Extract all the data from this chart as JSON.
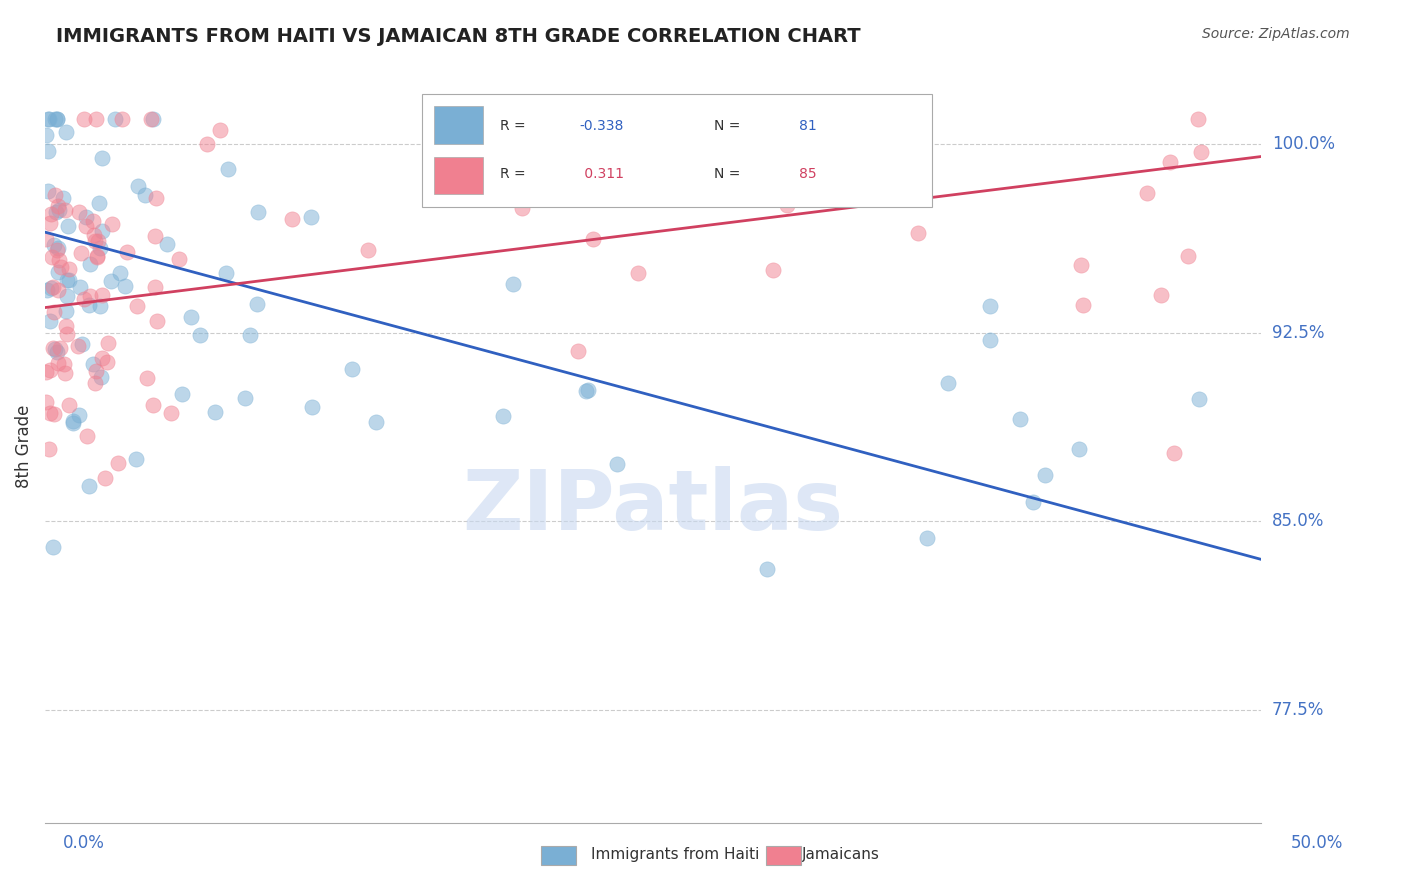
{
  "title": "IMMIGRANTS FROM HAITI VS JAMAICAN 8TH GRADE CORRELATION CHART",
  "source": "Source: ZipAtlas.com",
  "ylabel": "8th Grade",
  "xlim": [
    0.0,
    50.0
  ],
  "ylim": [
    73.0,
    103.0
  ],
  "yticks": [
    77.5,
    85.0,
    92.5,
    100.0
  ],
  "ytick_labels": [
    "77.5%",
    "85.0%",
    "92.5%",
    "100.0%"
  ],
  "blue_line_x": [
    0.0,
    50.0
  ],
  "blue_line_y": [
    96.5,
    83.5
  ],
  "pink_line_x": [
    0.0,
    50.0
  ],
  "pink_line_y": [
    93.5,
    99.5
  ],
  "scatter_color_blue": "#7aafd4",
  "scatter_color_pink": "#f08090",
  "line_color_blue": "#3060c0",
  "line_color_pink": "#d04060",
  "background_color": "#ffffff",
  "watermark": "ZIPatlas",
  "watermark_color": "#c8d8f0",
  "grid_color": "#cccccc",
  "R_blue": "-0.338",
  "N_blue": "81",
  "R_pink": "0.311",
  "N_pink": "85"
}
